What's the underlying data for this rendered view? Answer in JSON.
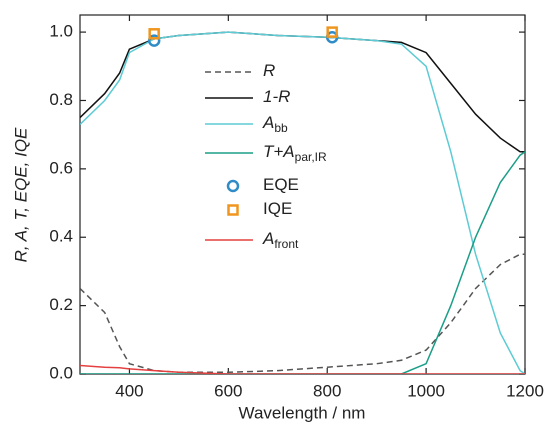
{
  "chart_data": {
    "type": "line",
    "x_label": "Wavelength / nm",
    "y_label": "R, A, T, EQE, IQE",
    "xlim": [
      300,
      1200
    ],
    "ylim": [
      0,
      1.05
    ],
    "xticks": [
      400,
      600,
      800,
      1000,
      1200
    ],
    "yticks": [
      {
        "value": 0,
        "label": "0.0"
      },
      0.2,
      0.4,
      0.6,
      0.8,
      {
        "value": 1,
        "label": "1.0"
      }
    ],
    "x": [
      300,
      350,
      380,
      400,
      450,
      500,
      600,
      700,
      800,
      900,
      950,
      1000,
      1050,
      1100,
      1150,
      1190,
      1200
    ],
    "series": [
      {
        "name": "R",
        "color": "#555555",
        "dashed": true,
        "values": [
          0.25,
          0.18,
          0.08,
          0.03,
          0.01,
          0.005,
          0.005,
          0.01,
          0.02,
          0.03,
          0.04,
          0.07,
          0.15,
          0.25,
          0.32,
          0.35,
          0.35
        ]
      },
      {
        "name": "1-R",
        "color": "#111111",
        "values": [
          0.75,
          0.82,
          0.88,
          0.95,
          0.98,
          0.99,
          1.0,
          0.99,
          0.985,
          0.975,
          0.97,
          0.94,
          0.85,
          0.76,
          0.69,
          0.65,
          0.65
        ]
      },
      {
        "name": "A",
        "subscript": "bb",
        "color": "#5ccbd4",
        "values": [
          0.73,
          0.8,
          0.86,
          0.94,
          0.98,
          0.99,
          1.0,
          0.99,
          0.985,
          0.975,
          0.965,
          0.9,
          0.65,
          0.35,
          0.12,
          0.01,
          0.0
        ]
      },
      {
        "name": "T+A",
        "subscript": "par,IR",
        "color": "#1b9e87",
        "values": [
          0,
          0,
          0,
          0,
          0,
          0,
          0,
          0,
          0,
          0,
          0,
          0.03,
          0.2,
          0.4,
          0.56,
          0.64,
          0.65
        ]
      },
      {
        "name": "EQE",
        "color": "#2f8cc6",
        "marker": "circle",
        "x": [
          450,
          810
        ],
        "values": [
          0.975,
          0.985
        ]
      },
      {
        "name": "IQE",
        "color": "#f0961e",
        "marker": "square",
        "x": [
          450,
          810
        ],
        "values": [
          0.995,
          1.0
        ]
      },
      {
        "name": "A",
        "subscript": "front",
        "color": "#e4403f",
        "values": [
          0.025,
          0.02,
          0.018,
          0.015,
          0.01,
          0.005,
          0,
          0,
          0,
          0,
          0,
          0,
          0,
          0,
          0,
          0,
          0
        ]
      }
    ]
  }
}
